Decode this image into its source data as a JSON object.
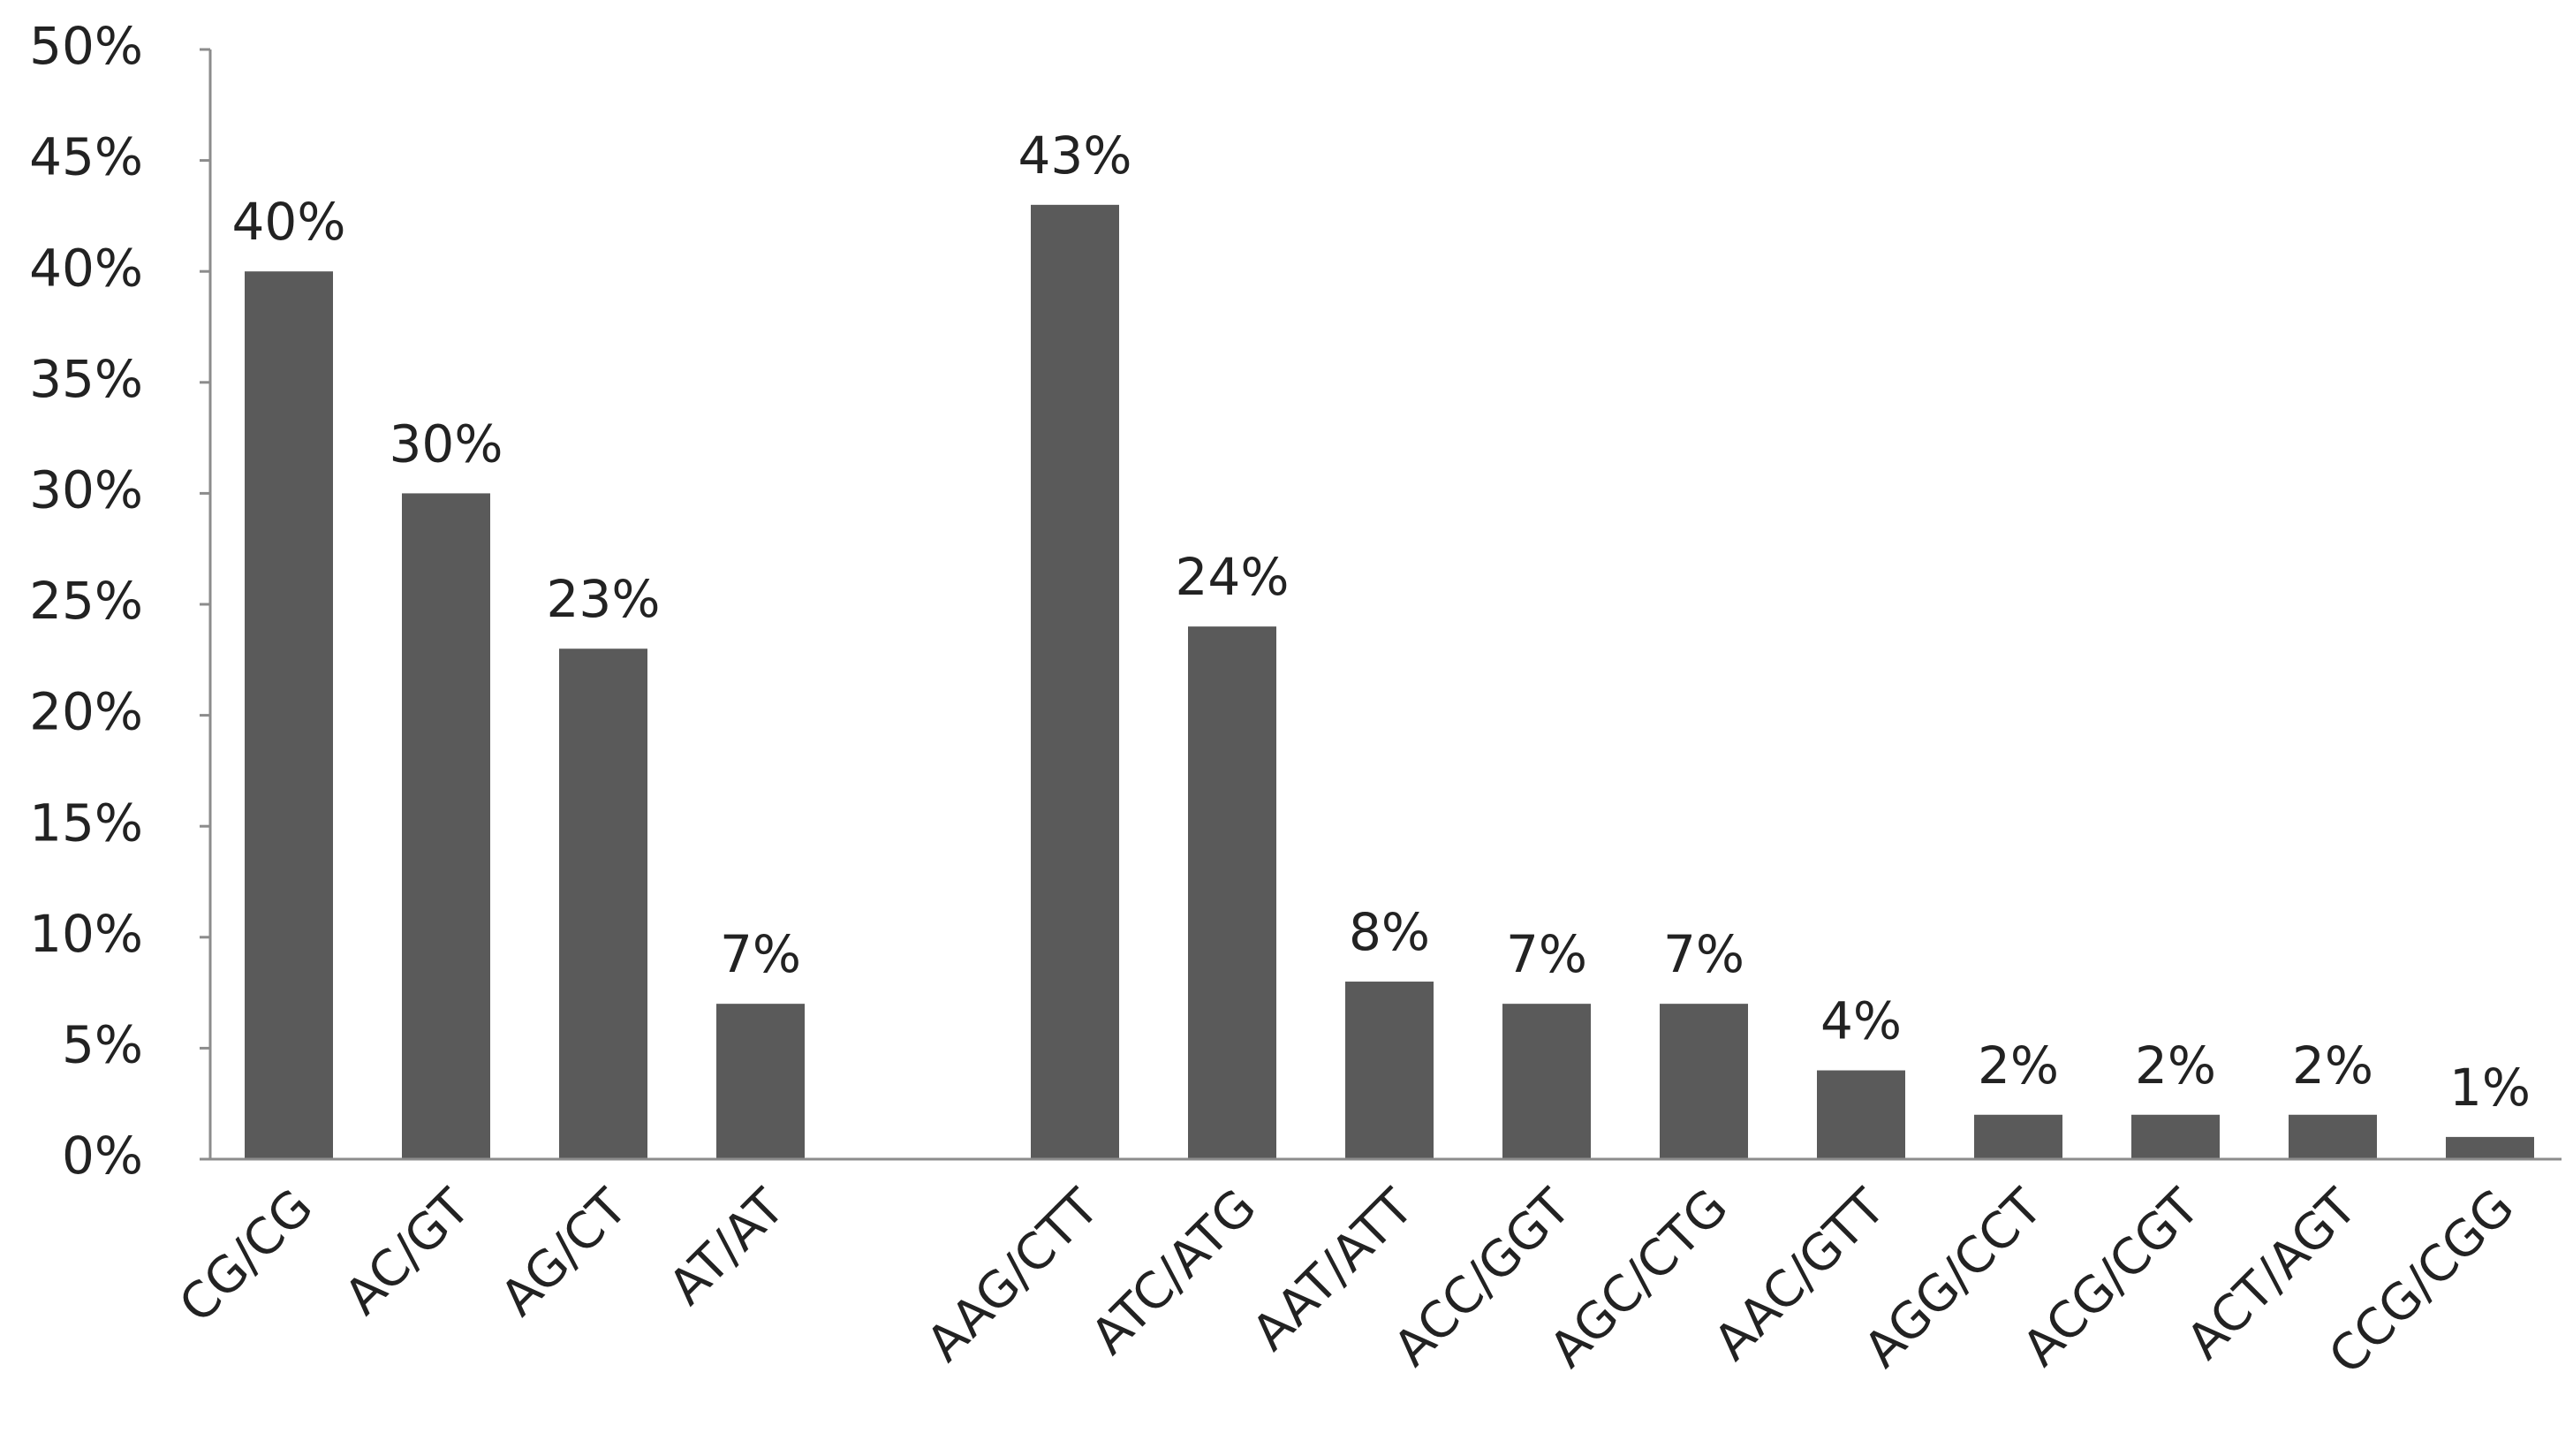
{
  "chart_data": {
    "type": "bar",
    "categories": [
      "CG/CG",
      "AC/GT",
      "AG/CT",
      "AT/AT",
      "",
      "AAG/CTT",
      "ATC/ATG",
      "AAT/ATT",
      "ACC/GGT",
      "AGC/CTG",
      "AAC/GTT",
      "AGG/CCT",
      "ACG/CGT",
      "ACT/AGT",
      "CCG/CGG"
    ],
    "values": [
      40,
      30,
      23,
      7,
      null,
      43,
      24,
      8,
      7,
      7,
      4,
      2,
      2,
      2,
      1
    ],
    "data_labels": [
      "40%",
      "30%",
      "23%",
      "7%",
      "",
      "43%",
      "24%",
      "8%",
      "7%",
      "7%",
      "4%",
      "2%",
      "2%",
      "2%",
      "1%"
    ],
    "yticks": [
      "0%",
      "5%",
      "10%",
      "15%",
      "20%",
      "25%",
      "30%",
      "35%",
      "40%",
      "45%",
      "50%"
    ],
    "ylim": [
      0,
      50
    ],
    "title": "",
    "xlabel": "",
    "ylabel": "",
    "grid": false,
    "legend": "none",
    "bar_color": "#5a5a5a",
    "axis_color": "#8c8c8c"
  }
}
